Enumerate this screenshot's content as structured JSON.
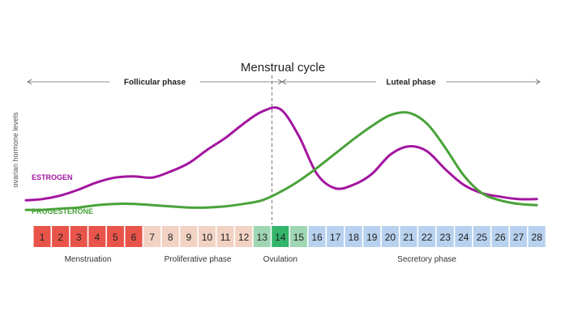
{
  "chart_data": {
    "type": "line",
    "title": "Menstrual cycle",
    "ylabel": "ovarian hormone levels",
    "xlabel": "",
    "xlim": [
      1,
      28
    ],
    "ylim": [
      0,
      100
    ],
    "phases": [
      {
        "label": "Follicular phase",
        "start_day": 1,
        "end_day": 14
      },
      {
        "label": "Luteal phase",
        "start_day": 14,
        "end_day": 28
      }
    ],
    "ovulation_marker_day": 14,
    "series": [
      {
        "name": "ESTROGEN",
        "color": "#a3159f",
        "x": [
          0,
          1,
          2,
          3,
          4,
          5,
          6,
          7,
          8,
          9,
          10,
          11,
          12,
          13,
          14,
          15,
          16,
          17,
          18,
          19,
          20,
          21,
          22,
          23,
          24,
          25,
          26,
          27,
          28
        ],
        "values": [
          14,
          15,
          18,
          23,
          29,
          33,
          34,
          33,
          38,
          45,
          56,
          66,
          78,
          88,
          90,
          68,
          36,
          24,
          27,
          36,
          52,
          59,
          55,
          40,
          27,
          20,
          17,
          15,
          15
        ]
      },
      {
        "name": "PROGESTERONE",
        "color": "#4aa23a",
        "x": [
          0,
          1,
          2,
          3,
          4,
          5,
          6,
          7,
          8,
          9,
          10,
          11,
          12,
          13,
          14,
          15,
          16,
          17,
          18,
          19,
          20,
          21,
          22,
          23,
          24,
          25,
          26,
          27,
          28
        ],
        "values": [
          6,
          6,
          7,
          8,
          10,
          11,
          11,
          10,
          9,
          8,
          8,
          9,
          11,
          14,
          21,
          30,
          41,
          53,
          65,
          76,
          85,
          87,
          78,
          58,
          35,
          20,
          14,
          11,
          10
        ]
      }
    ],
    "days": [
      {
        "label": "1",
        "color": "#e8544a"
      },
      {
        "label": "2",
        "color": "#e8544a"
      },
      {
        "label": "3",
        "color": "#e8544a"
      },
      {
        "label": "4",
        "color": "#e8544a"
      },
      {
        "label": "5",
        "color": "#e8544a"
      },
      {
        "label": "6",
        "color": "#e8544a"
      },
      {
        "label": "7",
        "color": "#f1d2c3"
      },
      {
        "label": "8",
        "color": "#f1d2c3"
      },
      {
        "label": "9",
        "color": "#f1d2c3"
      },
      {
        "label": "10",
        "color": "#f1d2c3"
      },
      {
        "label": "11",
        "color": "#f1d2c3"
      },
      {
        "label": "12",
        "color": "#f1d2c3"
      },
      {
        "label": "13",
        "color": "#9fd6b3"
      },
      {
        "label": "14",
        "color": "#33b56a"
      },
      {
        "label": "15",
        "color": "#9fd6b3"
      },
      {
        "label": "16",
        "color": "#b7d1ee"
      },
      {
        "label": "17",
        "color": "#b7d1ee"
      },
      {
        "label": "18",
        "color": "#b7d1ee"
      },
      {
        "label": "19",
        "color": "#b7d1ee"
      },
      {
        "label": "20",
        "color": "#b7d1ee"
      },
      {
        "label": "21",
        "color": "#b7d1ee"
      },
      {
        "label": "22",
        "color": "#b7d1ee"
      },
      {
        "label": "23",
        "color": "#b7d1ee"
      },
      {
        "label": "24",
        "color": "#b7d1ee"
      },
      {
        "label": "25",
        "color": "#b7d1ee"
      },
      {
        "label": "26",
        "color": "#b7d1ee"
      },
      {
        "label": "27",
        "color": "#b7d1ee"
      },
      {
        "label": "28",
        "color": "#b7d1ee"
      }
    ],
    "stages": [
      {
        "label": "Menstruation",
        "start_day": 1,
        "end_day": 6
      },
      {
        "label": "Proliferative phase",
        "start_day": 7,
        "end_day": 12
      },
      {
        "label": "Ovulation",
        "start_day": 13,
        "end_day": 15
      },
      {
        "label": "Secretory phase",
        "start_day": 16,
        "end_day": 28
      }
    ]
  }
}
